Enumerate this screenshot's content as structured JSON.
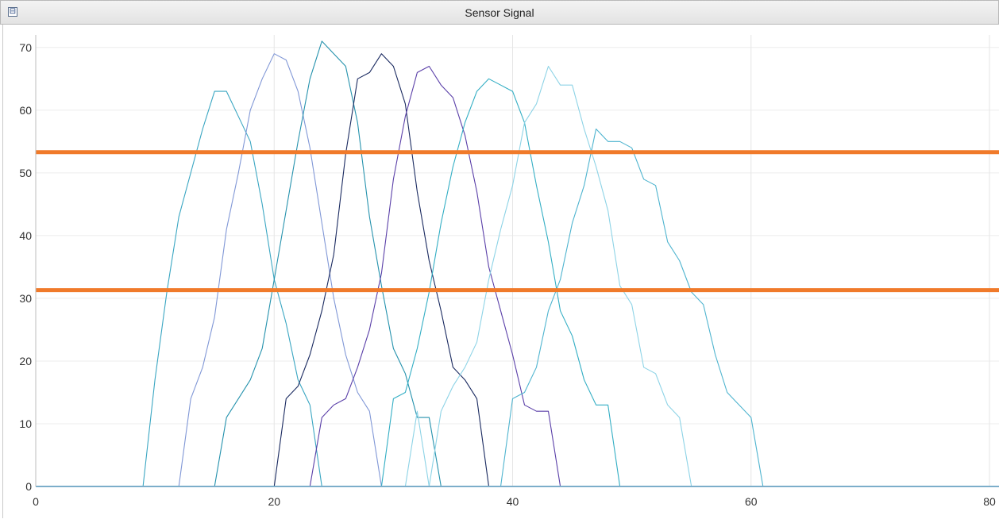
{
  "window": {
    "title": "Sensor Signal",
    "collapse_glyph": "⊟"
  },
  "chart_data": {
    "type": "line",
    "title": "Sensor Signal",
    "xlim": [
      0,
      80
    ],
    "ylim": [
      0,
      72
    ],
    "x_ticks": [
      0,
      20,
      40,
      60,
      80
    ],
    "y_ticks": [
      0,
      10,
      20,
      30,
      40,
      50,
      60,
      70
    ],
    "grid": true,
    "thresholds": [
      {
        "value": 53.3,
        "color": "#f07a2a"
      },
      {
        "value": 31.3,
        "color": "#f07a2a"
      }
    ],
    "baseline_color": "#3a9fd6",
    "series": [
      {
        "color": "#3aa6c2",
        "points": [
          [
            0,
            0
          ],
          [
            9,
            0
          ],
          [
            10,
            17
          ],
          [
            11,
            31
          ],
          [
            12,
            43
          ],
          [
            13,
            50
          ],
          [
            14,
            57
          ],
          [
            15,
            63
          ],
          [
            16,
            63
          ],
          [
            17,
            59
          ],
          [
            18,
            55
          ],
          [
            19,
            45
          ],
          [
            20,
            33
          ],
          [
            21,
            26
          ],
          [
            22,
            17
          ],
          [
            23,
            13
          ],
          [
            24,
            0
          ],
          [
            80,
            0
          ]
        ]
      },
      {
        "color": "#8097d6",
        "points": [
          [
            0,
            0
          ],
          [
            12,
            0
          ],
          [
            13,
            14
          ],
          [
            14,
            19
          ],
          [
            15,
            27
          ],
          [
            16,
            41
          ],
          [
            17,
            50
          ],
          [
            18,
            60
          ],
          [
            19,
            65
          ],
          [
            20,
            69
          ],
          [
            21,
            68
          ],
          [
            22,
            63
          ],
          [
            23,
            54
          ],
          [
            24,
            42
          ],
          [
            25,
            30
          ],
          [
            26,
            21
          ],
          [
            27,
            15
          ],
          [
            28,
            12
          ],
          [
            29,
            0
          ],
          [
            80,
            0
          ]
        ]
      },
      {
        "color": "#2592ad",
        "points": [
          [
            0,
            0
          ],
          [
            15,
            0
          ],
          [
            16,
            11
          ],
          [
            17,
            14
          ],
          [
            18,
            17
          ],
          [
            19,
            22
          ],
          [
            20,
            33
          ],
          [
            21,
            44
          ],
          [
            22,
            55
          ],
          [
            23,
            65
          ],
          [
            24,
            71
          ],
          [
            25,
            69
          ],
          [
            26,
            67
          ],
          [
            27,
            58
          ],
          [
            28,
            43
          ],
          [
            29,
            32
          ],
          [
            30,
            22
          ],
          [
            31,
            18
          ],
          [
            32,
            11
          ],
          [
            33,
            11
          ],
          [
            34,
            0
          ],
          [
            80,
            0
          ]
        ]
      },
      {
        "color": "#1a2a60",
        "points": [
          [
            0,
            0
          ],
          [
            20,
            0
          ],
          [
            21,
            14
          ],
          [
            22,
            16
          ],
          [
            23,
            21
          ],
          [
            24,
            28
          ],
          [
            25,
            37
          ],
          [
            26,
            53
          ],
          [
            27,
            65
          ],
          [
            28,
            66
          ],
          [
            29,
            69
          ],
          [
            30,
            67
          ],
          [
            31,
            61
          ],
          [
            32,
            47
          ],
          [
            33,
            36
          ],
          [
            34,
            28
          ],
          [
            35,
            19
          ],
          [
            36,
            17
          ],
          [
            37,
            14
          ],
          [
            38,
            0
          ],
          [
            80,
            0
          ]
        ]
      },
      {
        "color": "#5a3fa8",
        "points": [
          [
            0,
            0
          ],
          [
            23,
            0
          ],
          [
            24,
            11
          ],
          [
            25,
            13
          ],
          [
            26,
            14
          ],
          [
            27,
            19
          ],
          [
            28,
            25
          ],
          [
            29,
            34
          ],
          [
            30,
            49
          ],
          [
            31,
            59
          ],
          [
            32,
            66
          ],
          [
            33,
            67
          ],
          [
            34,
            64
          ],
          [
            35,
            62
          ],
          [
            36,
            56
          ],
          [
            37,
            47
          ],
          [
            38,
            35
          ],
          [
            39,
            28
          ],
          [
            40,
            21
          ],
          [
            41,
            13
          ],
          [
            42,
            12
          ],
          [
            43,
            12
          ],
          [
            44,
            0
          ],
          [
            80,
            0
          ]
        ]
      },
      {
        "color": "#33aec4",
        "points": [
          [
            0,
            0
          ],
          [
            29,
            0
          ],
          [
            30,
            14
          ],
          [
            31,
            15
          ],
          [
            32,
            22
          ],
          [
            33,
            31
          ],
          [
            34,
            42
          ],
          [
            35,
            51
          ],
          [
            36,
            58
          ],
          [
            37,
            63
          ],
          [
            38,
            65
          ],
          [
            39,
            64
          ],
          [
            40,
            63
          ],
          [
            41,
            58
          ],
          [
            42,
            48
          ],
          [
            43,
            39
          ],
          [
            44,
            28
          ],
          [
            45,
            24
          ],
          [
            46,
            17
          ],
          [
            47,
            13
          ],
          [
            48,
            13
          ],
          [
            49,
            0
          ],
          [
            80,
            0
          ]
        ]
      },
      {
        "color": "#8dd3e6",
        "points": [
          [
            0,
            0
          ],
          [
            31,
            0
          ],
          [
            32,
            12
          ],
          [
            33,
            0
          ],
          [
            34,
            12
          ],
          [
            35,
            16
          ],
          [
            36,
            19
          ],
          [
            37,
            23
          ],
          [
            38,
            33
          ],
          [
            39,
            41
          ],
          [
            40,
            48
          ],
          [
            41,
            58
          ],
          [
            42,
            61
          ],
          [
            43,
            67
          ],
          [
            44,
            64
          ],
          [
            45,
            64
          ],
          [
            46,
            57
          ],
          [
            47,
            51
          ],
          [
            48,
            44
          ],
          [
            49,
            32
          ],
          [
            50,
            29
          ],
          [
            51,
            19
          ],
          [
            52,
            18
          ],
          [
            53,
            13
          ],
          [
            54,
            11
          ],
          [
            55,
            0
          ],
          [
            80,
            0
          ]
        ]
      },
      {
        "color": "#4fb4cf",
        "points": [
          [
            0,
            0
          ],
          [
            39,
            0
          ],
          [
            40,
            14
          ],
          [
            41,
            15
          ],
          [
            42,
            19
          ],
          [
            43,
            28
          ],
          [
            44,
            33
          ],
          [
            45,
            42
          ],
          [
            46,
            48
          ],
          [
            47,
            57
          ],
          [
            48,
            55
          ],
          [
            49,
            55
          ],
          [
            50,
            54
          ],
          [
            51,
            49
          ],
          [
            52,
            48
          ],
          [
            53,
            39
          ],
          [
            54,
            36
          ],
          [
            55,
            31
          ],
          [
            56,
            29
          ],
          [
            57,
            21
          ],
          [
            58,
            15
          ],
          [
            59,
            13
          ],
          [
            60,
            11
          ],
          [
            61,
            0
          ],
          [
            80,
            0
          ]
        ]
      }
    ]
  }
}
